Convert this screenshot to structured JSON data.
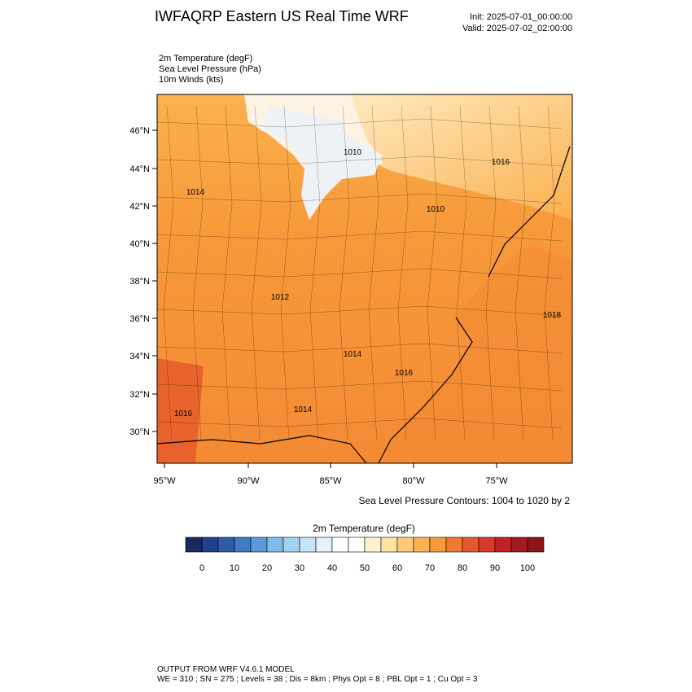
{
  "header": {
    "title": "IWFAQRP Eastern US Real Time WRF",
    "init": "Init: 2025-07-01_00:00:00",
    "valid": "Valid: 2025-07-02_02:00:00"
  },
  "fields": [
    "2m Temperature   (degF)",
    "Sea Level Pressure   (hPa)",
    "10m Winds   (kts)"
  ],
  "map": {
    "lat_labels": [
      "46°N",
      "44°N",
      "42°N",
      "40°N",
      "38°N",
      "36°N",
      "34°N",
      "32°N",
      "30°N"
    ],
    "lon_labels": [
      "95°W",
      "90°W",
      "85°W",
      "80°W",
      "75°W"
    ],
    "contour_labels": [
      "1010",
      "1016",
      "1014",
      "1010",
      "1012",
      "1018",
      "1014",
      "1016",
      "1014",
      "1016"
    ],
    "contour_note": "Sea Level Pressure Contours: 1004 to 1020 by 2"
  },
  "colorbar": {
    "title": "2m Temperature  (degF)",
    "ticks": [
      0,
      10,
      20,
      30,
      40,
      50,
      60,
      70,
      80,
      90,
      100
    ],
    "colors": [
      "#1b2a5e",
      "#223f8a",
      "#2e5aa8",
      "#3f7cc2",
      "#5a9bd6",
      "#7fbbe8",
      "#a3d3f2",
      "#c4e4f7",
      "#e3f2fb",
      "#ffffff",
      "#ffffff",
      "#fff2cf",
      "#ffe3a3",
      "#fdc978",
      "#fbb24f",
      "#f79a3a",
      "#f0792e",
      "#e5582b",
      "#d63a2a",
      "#c02228",
      "#a8181f",
      "#8c1318"
    ]
  },
  "footer": [
    "OUTPUT FROM WRF V4.6.1 MODEL",
    "WE = 310 ; SN = 275 ; Levels = 38 ; Dis = 8km ; Phys Opt = 8 ; PBL Opt = 1 ; Cu Opt = 3"
  ]
}
